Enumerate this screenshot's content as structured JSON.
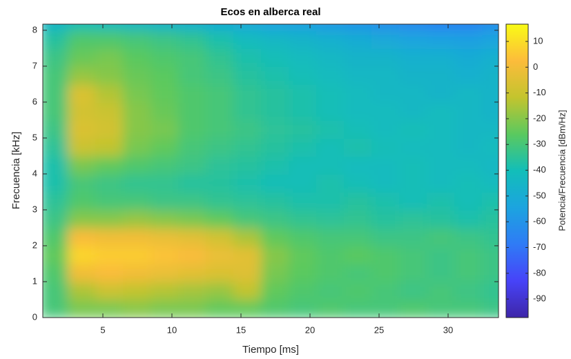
{
  "chart_data": {
    "type": "heatmap",
    "title": "Ecos en alberca real",
    "x_label": "Tiempo [ms]",
    "y_label": "Frecuencia [kHz]",
    "colorbar_label": "Potencia/Frecuencia [dBm/Hz]",
    "x": [
      1.5,
      3.5,
      5.5,
      7.5,
      9.5,
      11.5,
      13.5,
      15.5,
      17.5,
      19.5,
      21.5,
      23.5,
      25.5,
      27.5,
      29.5,
      31.5,
      33.5
    ],
    "y": [
      0.25,
      0.75,
      1.25,
      1.75,
      2.25,
      2.75,
      3.25,
      3.75,
      4.25,
      4.75,
      5.25,
      5.75,
      6.25,
      6.75,
      7.25,
      7.75,
      8.25
    ],
    "z": [
      [
        -30,
        -22,
        -22,
        -20,
        -22,
        -22,
        -25,
        -25,
        -28,
        -30,
        -28,
        -30,
        -30,
        -28,
        -30,
        -30,
        -32
      ],
      [
        -30,
        -15,
        -10,
        -12,
        -14,
        -16,
        -18,
        -12,
        -25,
        -28,
        -30,
        -28,
        -30,
        -32,
        -30,
        -32,
        -34
      ],
      [
        -28,
        0,
        2,
        0,
        -2,
        -4,
        -6,
        -5,
        -22,
        -26,
        -28,
        -30,
        -28,
        -30,
        -32,
        -30,
        -32
      ],
      [
        -25,
        8,
        6,
        6,
        4,
        2,
        -2,
        -4,
        -20,
        -25,
        -28,
        -26,
        -28,
        -30,
        -32,
        -30,
        -32
      ],
      [
        -28,
        2,
        0,
        0,
        -2,
        -4,
        -8,
        -15,
        -25,
        -28,
        -30,
        -30,
        -32,
        -32,
        -30,
        -32,
        -34
      ],
      [
        -32,
        -20,
        -20,
        -18,
        -20,
        -22,
        -25,
        -30,
        -32,
        -34,
        -35,
        -34,
        -36,
        -35,
        -36,
        -38,
        -36
      ],
      [
        -35,
        -28,
        -30,
        -30,
        -32,
        -32,
        -34,
        -35,
        -36,
        -38,
        -38,
        -36,
        -38,
        -40,
        -38,
        -40,
        -38
      ],
      [
        -38,
        -30,
        -32,
        -34,
        -34,
        -36,
        -36,
        -38,
        -40,
        -40,
        -38,
        -40,
        -42,
        -40,
        -42,
        -40,
        -42
      ],
      [
        -38,
        -22,
        -25,
        -28,
        -30,
        -32,
        -35,
        -36,
        -38,
        -40,
        -40,
        -42,
        -42,
        -40,
        -42,
        -42,
        -44
      ],
      [
        -35,
        -10,
        -12,
        -22,
        -25,
        -30,
        -32,
        -34,
        -36,
        -38,
        -40,
        -38,
        -40,
        -42,
        -42,
        -44,
        -42
      ],
      [
        -32,
        -6,
        -8,
        -20,
        -22,
        -28,
        -30,
        -32,
        -35,
        -36,
        -38,
        -40,
        -42,
        -40,
        -42,
        -44,
        -44
      ],
      [
        -30,
        -8,
        -10,
        -20,
        -24,
        -28,
        -30,
        -34,
        -36,
        -38,
        -40,
        -42,
        -42,
        -44,
        -42,
        -44,
        -46
      ],
      [
        -30,
        -6,
        -14,
        -22,
        -25,
        -28,
        -30,
        -34,
        -36,
        -38,
        -40,
        -42,
        -44,
        -44,
        -46,
        -44,
        -46
      ],
      [
        -30,
        -18,
        -20,
        -24,
        -26,
        -30,
        -32,
        -36,
        -38,
        -40,
        -42,
        -44,
        -44,
        -46,
        -46,
        -48,
        -46
      ],
      [
        -32,
        -24,
        -22,
        -26,
        -28,
        -30,
        -34,
        -38,
        -40,
        -42,
        -44,
        -46,
        -46,
        -48,
        -48,
        -50,
        -48
      ],
      [
        -36,
        -28,
        -28,
        -30,
        -32,
        -34,
        -38,
        -42,
        -44,
        -46,
        -48,
        -50,
        -52,
        -54,
        -55,
        -56,
        -54
      ],
      [
        -45,
        -40,
        -42,
        -44,
        -46,
        -48,
        -50,
        -52,
        -55,
        -56,
        -58,
        -60,
        -62,
        -64,
        -66,
        -66,
        -62
      ]
    ],
    "xlim": [
      0.65,
      33.65
    ],
    "ylim": [
      0,
      8.17
    ],
    "clim": [
      -97.2,
      16.7
    ],
    "xticks": [
      5,
      10,
      15,
      20,
      25,
      30
    ],
    "yticks": [
      0,
      1,
      2,
      3,
      4,
      5,
      6,
      7,
      8
    ],
    "cticks": [
      10,
      0,
      -10,
      -20,
      -30,
      -40,
      -50,
      -60,
      -70,
      -80,
      -90
    ],
    "colormap": [
      "#3e26a8",
      "#4743f8",
      "#2f7bf6",
      "#1ca4df",
      "#12beb9",
      "#5ac95f",
      "#c3c42e",
      "#fcbc3b",
      "#f9fb15"
    ]
  }
}
